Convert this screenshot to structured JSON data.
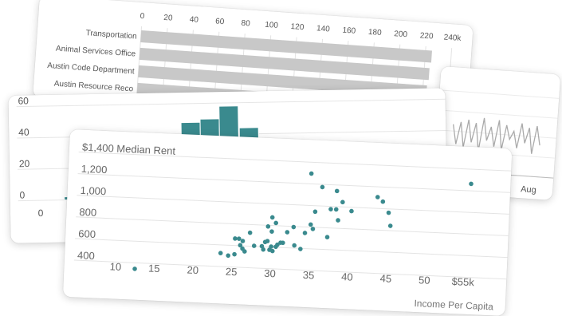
{
  "chart_data": [
    {
      "type": "bar",
      "orientation": "horizontal",
      "categories": [
        "Transportation",
        "Animal Services Office",
        "Austin Code Department",
        "Austin Resource Reco"
      ],
      "values": [
        225000,
        224000,
        223000,
        221000
      ],
      "x_ticks": [
        "0",
        "20",
        "40",
        "60",
        "80",
        "100",
        "120",
        "140",
        "160",
        "180",
        "200",
        "220",
        "240k"
      ],
      "xlim": [
        0,
        240000
      ],
      "bar_color": "#c8c8c8",
      "grid": true
    },
    {
      "type": "line",
      "x_ticks": [
        "Aug"
      ],
      "values": [
        0.55,
        0.2,
        0.6,
        0.15,
        0.65,
        0.25,
        0.6,
        0.1,
        0.7,
        0.3,
        0.55,
        0.2,
        0.68,
        0.15,
        0.6,
        0.35,
        0.5,
        0.2,
        0.65,
        0.3,
        0.58,
        0.12,
        0.62,
        0.28
      ],
      "line_color": "#aaaaaa",
      "grid": true
    },
    {
      "type": "bar",
      "subtype": "histogram",
      "y_ticks": [
        "60",
        "40",
        "20",
        "0"
      ],
      "x_ticks": [
        "0"
      ],
      "ylim": [
        0,
        60
      ],
      "bars": [
        {
          "value": 2
        },
        {
          "value": 48
        },
        {
          "value": 50
        },
        {
          "value": 58
        },
        {
          "value": 44
        }
      ],
      "bar_color": "#3a8a8e",
      "grid": true
    },
    {
      "type": "scatter",
      "ylabel": "$1,400 Median Rent",
      "xlabel": "Income Per Capita",
      "y_ticks": [
        "1,200",
        "1,000",
        "800",
        "600",
        "400"
      ],
      "x_ticks": [
        "10",
        "15",
        "20",
        "25",
        "30",
        "35",
        "40",
        "45",
        "50",
        "$55k"
      ],
      "xlim": [
        8,
        57
      ],
      "ylim": [
        250,
        1400
      ],
      "point_color": "#3a8a8e",
      "grid": true,
      "points": [
        [
          12.5,
          300
        ],
        [
          23.5,
          480
        ],
        [
          24.5,
          460
        ],
        [
          25.3,
          475
        ],
        [
          25.3,
          620
        ],
        [
          25.8,
          620
        ],
        [
          26,
          560
        ],
        [
          26.3,
          530
        ],
        [
          26.3,
          600
        ],
        [
          26.6,
          505
        ],
        [
          27.2,
          680
        ],
        [
          27.8,
          560
        ],
        [
          28.8,
          560
        ],
        [
          29,
          530
        ],
        [
          29.2,
          600
        ],
        [
          29.5,
          610
        ],
        [
          29.5,
          745
        ],
        [
          29.8,
          530
        ],
        [
          30,
          560
        ],
        [
          30,
          700
        ],
        [
          30,
          830
        ],
        [
          30.2,
          520
        ],
        [
          30.5,
          780
        ],
        [
          30.6,
          560
        ],
        [
          30.8,
          580
        ],
        [
          31.2,
          600
        ],
        [
          31.5,
          600
        ],
        [
          32,
          700
        ],
        [
          32.8,
          750
        ],
        [
          33,
          580
        ],
        [
          33.8,
          550
        ],
        [
          34.3,
          700
        ],
        [
          35,
          780
        ],
        [
          34.8,
          1250
        ],
        [
          35.3,
          740
        ],
        [
          35.5,
          900
        ],
        [
          36.3,
          1130
        ],
        [
          37.2,
          670
        ],
        [
          37.5,
          930
        ],
        [
          38.2,
          930
        ],
        [
          38.2,
          1100
        ],
        [
          38.5,
          830
        ],
        [
          39,
          1000
        ],
        [
          40.2,
          920
        ],
        [
          43.5,
          1060
        ],
        [
          44.2,
          1020
        ],
        [
          45,
          920
        ],
        [
          45.3,
          800
        ],
        [
          55.5,
          1220
        ]
      ]
    }
  ]
}
